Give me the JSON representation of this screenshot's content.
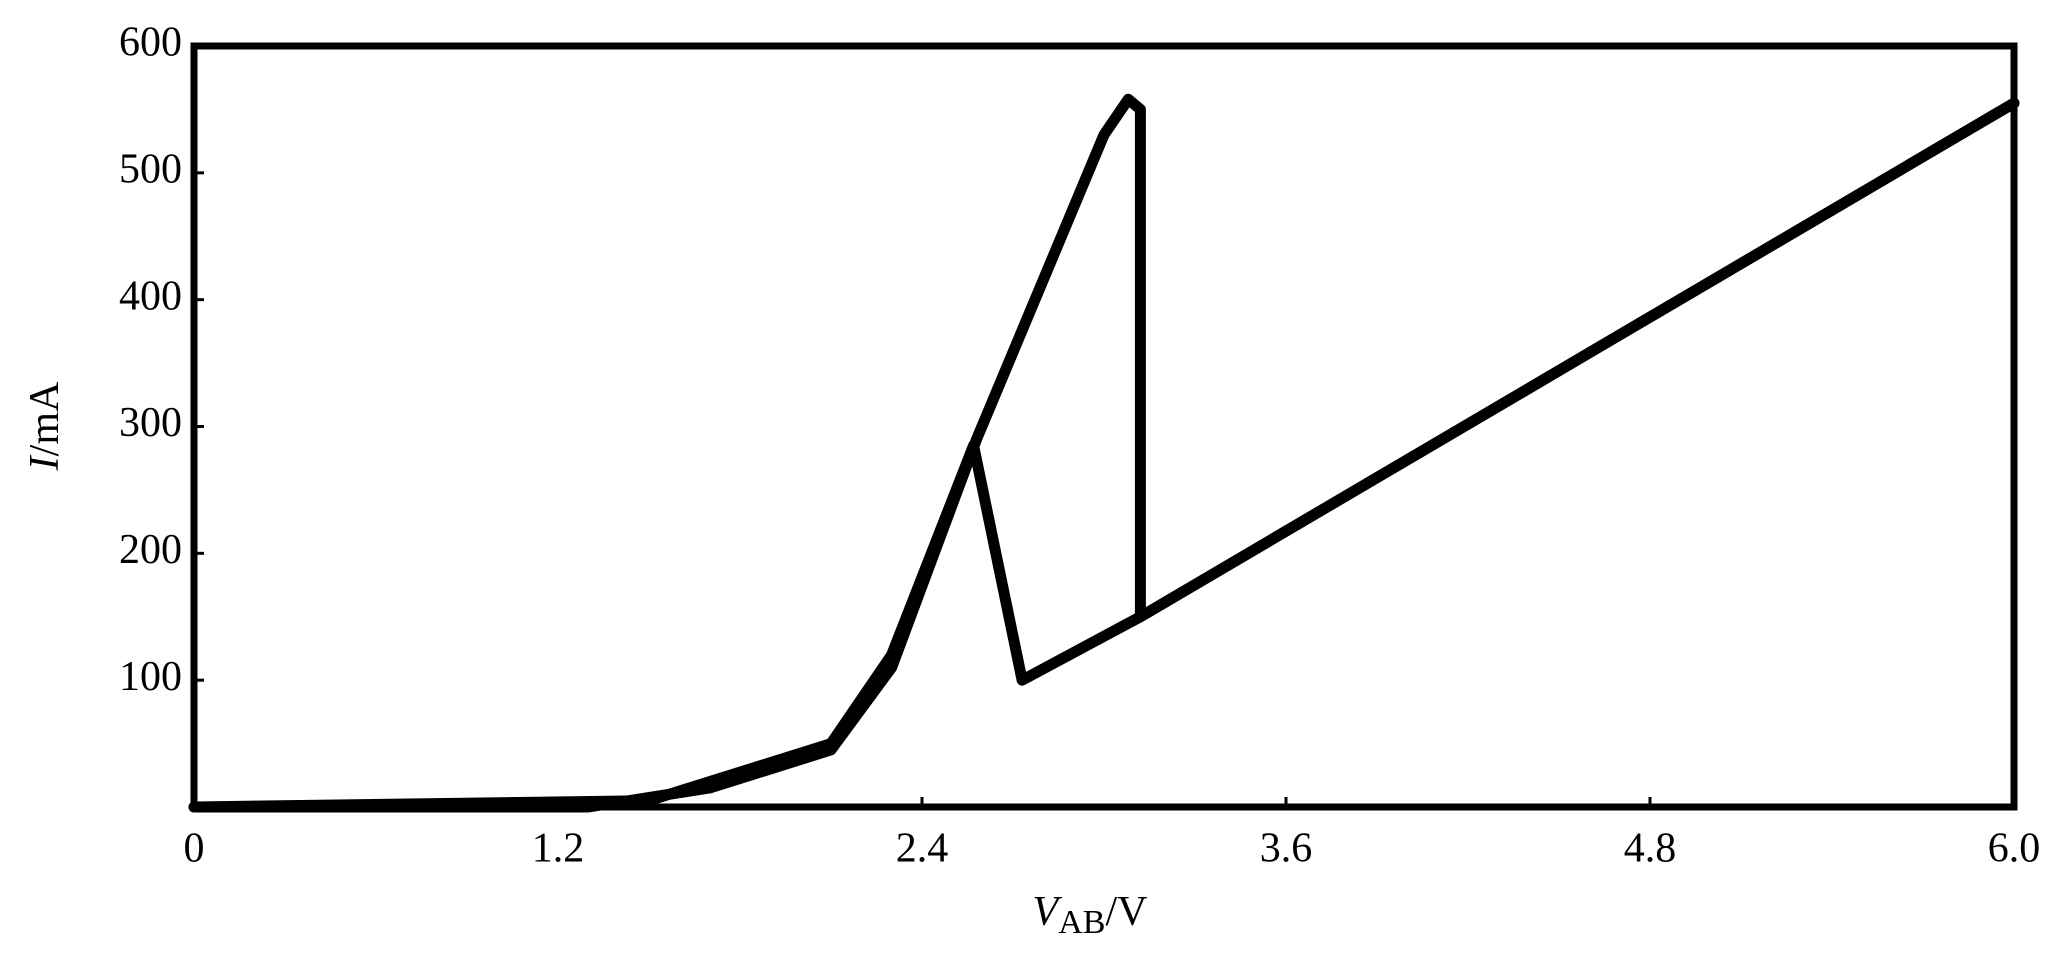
{
  "chart_data": {
    "type": "line",
    "xlabel": {
      "symbol": "V",
      "subscript": "AB",
      "unit": "/V"
    },
    "ylabel": {
      "symbol": "I",
      "unit": "/mA"
    },
    "xlim": [
      0,
      6
    ],
    "xticks": [
      0,
      1.2,
      2.4,
      3.6,
      4.8,
      {
        "value": 6,
        "label": "6.0"
      }
    ],
    "ylim": [
      0,
      600
    ],
    "yticks": [
      100,
      200,
      300,
      400,
      500,
      600
    ],
    "grid": false,
    "color": "#000000",
    "series": [
      {
        "x": [
          0,
          1.3,
          1.7,
          2.1,
          2.3,
          2.58,
          3.0,
          3.08,
          3.12,
          3.12,
          6.0
        ],
        "values": [
          0,
          0,
          15,
          45,
          110,
          290,
          530,
          558,
          550,
          150,
          555
        ]
      },
      {
        "x": [
          6.0,
          3.12,
          2.73,
          2.57,
          2.3,
          2.1,
          1.5,
          0
        ],
        "values": [
          555,
          150,
          100,
          285,
          120,
          50,
          5,
          0
        ]
      }
    ]
  }
}
